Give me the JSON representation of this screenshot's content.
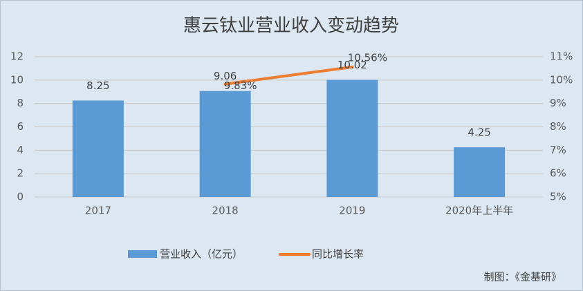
{
  "chart_data": {
    "type": "bar",
    "title": "惠云钛业营业收入变动趋势",
    "categories": [
      "2017",
      "2018",
      "2019",
      "2020年上半年"
    ],
    "series": [
      {
        "name": "营业收入（亿元）",
        "type": "bar",
        "color": "#5b9bd5",
        "values": [
          8.25,
          9.06,
          10.02,
          4.25
        ]
      },
      {
        "name": "同比增长率",
        "type": "line",
        "axis": "y2",
        "color": "#ed7d31",
        "values": [
          null,
          9.83,
          10.56,
          null
        ],
        "value_labels": [
          null,
          "9.83%",
          "10.56%",
          null
        ]
      }
    ],
    "ylim": [
      0,
      12
    ],
    "yticks": [
      0,
      2,
      4,
      6,
      8,
      10,
      12
    ],
    "y2lim": [
      5,
      11
    ],
    "y2ticks": [
      {
        "value": 5,
        "label": "5%"
      },
      {
        "value": 6,
        "label": "6%"
      },
      {
        "value": 7,
        "label": "7%"
      },
      {
        "value": 8,
        "label": "8%"
      },
      {
        "value": 9,
        "label": "9%"
      },
      {
        "value": 10,
        "label": "10%"
      },
      {
        "value": 11,
        "label": "11%"
      }
    ],
    "grid": true,
    "legend": "bottom",
    "footnote": "制图：《金基研》"
  }
}
